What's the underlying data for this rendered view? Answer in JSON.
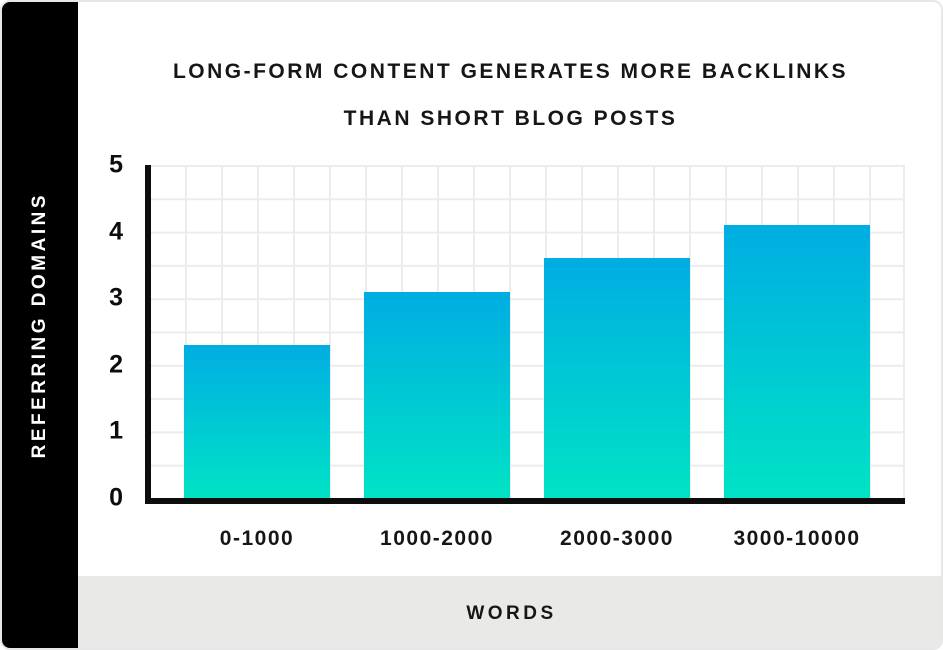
{
  "title": {
    "line1": "LONG-FORM CONTENT GENERATES MORE BACKLINKS",
    "line2": "THAN SHORT BLOG POSTS"
  },
  "sidebar": {
    "ylabel": "REFERRING DOMAINS"
  },
  "bottom_band": {
    "xlabel": "WORDS"
  },
  "chart_data": {
    "type": "bar",
    "title": "LONG-FORM CONTENT GENERATES MORE BACKLINKS THAN SHORT BLOG POSTS",
    "categories": [
      "0-1000",
      "1000-2000",
      "2000-3000",
      "3000-10000"
    ],
    "values": [
      2.3,
      3.1,
      3.6,
      4.1
    ],
    "xlabel": "WORDS",
    "ylabel": "REFERRING DOMAINS",
    "ylim": [
      0,
      5
    ],
    "yticks": [
      0,
      1,
      2,
      3,
      4,
      5
    ],
    "grid": true,
    "grid_minor_step": 0.5,
    "legend": "none",
    "colors": {
      "bar_gradient_top": "#00ade3",
      "bar_gradient_bottom": "#00e3c5",
      "grid_line": "#ececec",
      "axis": "#0d0d0d",
      "sidebar_bg": "#000000",
      "bottom_band_bg": "#e9e9e8",
      "card_border": "#e7e7e7",
      "text": "#161616"
    }
  }
}
